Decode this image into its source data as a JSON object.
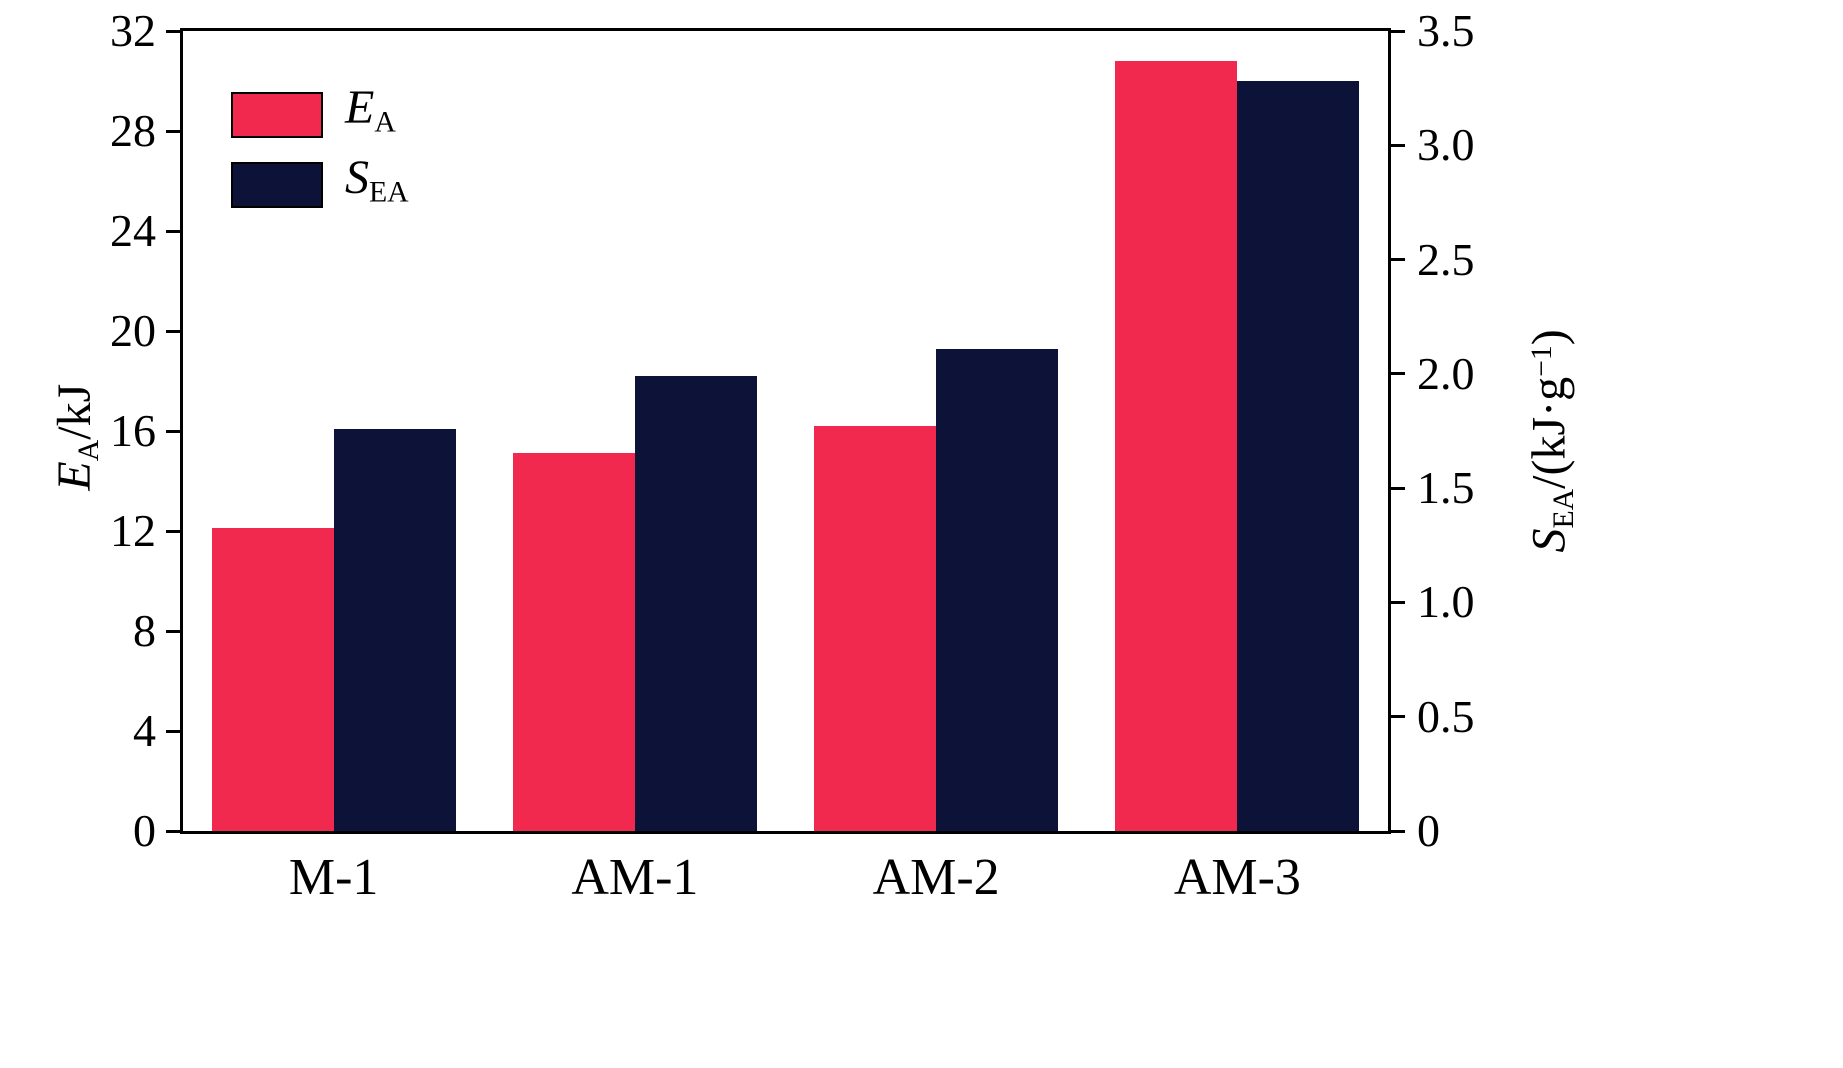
{
  "chart_data": {
    "type": "bar",
    "title": "",
    "categories": [
      "M-1",
      "AM-1",
      "AM-2",
      "AM-3"
    ],
    "series": [
      {
        "name": "EA",
        "axis": "left",
        "color": "#F2294E",
        "values": [
          12.1,
          15.1,
          16.2,
          30.8
        ]
      },
      {
        "name": "SEA",
        "axis": "right",
        "color": "#0D1238",
        "values": [
          1.76,
          1.99,
          2.11,
          3.28
        ]
      }
    ],
    "left_axis": {
      "label_var": "E",
      "label_sub": "A",
      "label_unit": "/kJ",
      "min": 0,
      "max": 32,
      "ticks": [
        0,
        4,
        8,
        12,
        16,
        20,
        24,
        28,
        32
      ]
    },
    "right_axis": {
      "label_var": "S",
      "label_sub": "EA",
      "label_unit_pre": "/(kJ·g",
      "label_sup": "−1",
      "label_unit_post": ")",
      "min": 0,
      "max": 3.5,
      "ticks": [
        "0",
        "0.5",
        "1.0",
        "1.5",
        "2.0",
        "2.5",
        "3.0",
        "3.5"
      ]
    },
    "legend": {
      "position": "top-left",
      "items": [
        {
          "var": "E",
          "sub": "A"
        },
        {
          "var": "S",
          "sub": "EA"
        }
      ]
    },
    "grid": false
  },
  "colors": {
    "bar_red": "#F2294E",
    "bar_navy": "#0D1238",
    "axis": "#000000",
    "background": "#FFFFFF"
  }
}
